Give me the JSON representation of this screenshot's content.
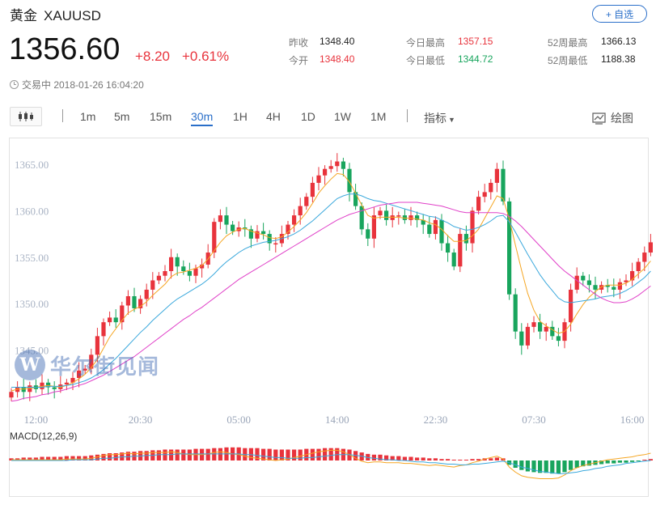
{
  "header": {
    "name": "黄金",
    "symbol": "XAUUSD",
    "watch_label": "+ 自选",
    "price": "1356.60",
    "change_abs": "+8.20",
    "change_pct": "+0.61%",
    "status": "交易中 2018-01-26 16:04:20"
  },
  "stats": {
    "prev_close_label": "昨收",
    "prev_close": "1348.40",
    "open_label": "今开",
    "open": "1348.40",
    "day_high_label": "今日最高",
    "day_high": "1357.15",
    "day_low_label": "今日最低",
    "day_low": "1344.72",
    "w52_high_label": "52周最高",
    "w52_high": "1366.13",
    "w52_low_label": "52周最低",
    "w52_low": "1188.38"
  },
  "toolbar": {
    "periods": [
      "1m",
      "5m",
      "15m",
      "30m",
      "1H",
      "4H",
      "1D",
      "1W",
      "1M"
    ],
    "active_period": "30m",
    "indicators_label": "指标",
    "draw_label": "绘图"
  },
  "watermark": {
    "logo": "W",
    "text": "华尔街见闻"
  },
  "colors": {
    "up": "#e8333c",
    "down": "#18a55d",
    "ma1": "#f5a623",
    "ma2": "#3aa8dc",
    "ma3": "#e040c8",
    "accent": "#2a6fc9"
  },
  "chart_data": {
    "type": "candlestick",
    "ylim": [
      1340,
      1367
    ],
    "yticks": [
      "1345.00",
      "1350.00",
      "1355.00",
      "1360.00",
      "1365.00"
    ],
    "ytick_values": [
      1345,
      1350,
      1355,
      1360,
      1365
    ],
    "xticks": [
      "12:00",
      "20:30",
      "05:00",
      "14:00",
      "22:30",
      "07:30",
      "16:00"
    ],
    "xtick_index": [
      4,
      21,
      37,
      53,
      69,
      85,
      101
    ],
    "close": [
      1340.5,
      1341.0,
      1340.5,
      1341.2,
      1340.8,
      1341.5,
      1341.0,
      1340.8,
      1341.3,
      1341.5,
      1342.0,
      1342.8,
      1343.0,
      1344.5,
      1346.5,
      1348.0,
      1348.5,
      1348.0,
      1349.8,
      1350.8,
      1349.5,
      1350.5,
      1351.5,
      1352.5,
      1353.0,
      1353.5,
      1355.0,
      1354.0,
      1353.5,
      1353.0,
      1353.8,
      1354.2,
      1355.5,
      1358.8,
      1359.5,
      1358.5,
      1357.8,
      1358.2,
      1358.0,
      1357.0,
      1357.8,
      1357.5,
      1356.5,
      1356.5,
      1357.5,
      1358.5,
      1359.5,
      1360.5,
      1361.5,
      1363.0,
      1363.8,
      1364.5,
      1364.8,
      1365.3,
      1364.5,
      1362.0,
      1360.5,
      1358.0,
      1357.0,
      1359.5,
      1360.0,
      1359.0,
      1359.5,
      1359.5,
      1359.0,
      1359.5,
      1359.0,
      1358.5,
      1357.5,
      1359.0,
      1356.5,
      1355.5,
      1354.0,
      1357.5,
      1356.5,
      1360.0,
      1361.5,
      1362.0,
      1363.0,
      1364.5,
      1361.0,
      1351.0,
      1347.0,
      1345.5,
      1347.5,
      1348.0,
      1347.0,
      1347.5,
      1346.5,
      1346.0,
      1348.0,
      1351.5,
      1353.0,
      1352.5,
      1352.0,
      1351.5,
      1352.0,
      1351.8,
      1351.5,
      1352.3,
      1352.5,
      1353.5,
      1354.5,
      1355.5,
      1356.6
    ],
    "ma1": [
      1340.6,
      1340.8,
      1340.8,
      1340.9,
      1341.0,
      1341.1,
      1341.2,
      1341.1,
      1341.0,
      1341.2,
      1341.5,
      1341.9,
      1342.4,
      1343.1,
      1344.0,
      1345.2,
      1346.4,
      1347.3,
      1348.2,
      1349.0,
      1349.4,
      1349.7,
      1350.2,
      1350.9,
      1351.5,
      1352.1,
      1352.9,
      1353.3,
      1353.4,
      1353.6,
      1353.8,
      1354.1,
      1354.8,
      1355.7,
      1356.6,
      1357.3,
      1357.7,
      1358.0,
      1358.1,
      1357.8,
      1357.6,
      1357.4,
      1357.1,
      1357.0,
      1357.2,
      1357.7,
      1358.3,
      1359.0,
      1359.8,
      1360.8,
      1361.9,
      1362.7,
      1363.4,
      1364.0,
      1363.9,
      1363.1,
      1361.9,
      1360.6,
      1359.5,
      1359.2,
      1359.3,
      1359.3,
      1359.3,
      1359.3,
      1359.2,
      1359.2,
      1359.1,
      1359.0,
      1358.7,
      1358.5,
      1358.0,
      1357.3,
      1356.7,
      1356.7,
      1356.8,
      1357.3,
      1358.0,
      1359.2,
      1360.4,
      1361.6,
      1361.3,
      1359.1,
      1356.3,
      1353.6,
      1351.1,
      1349.3,
      1348.1,
      1347.6,
      1347.2,
      1346.8,
      1347.0,
      1347.8,
      1348.9,
      1349.9,
      1350.7,
      1351.3,
      1351.8,
      1352.0,
      1352.0,
      1352.0,
      1352.2,
      1352.6,
      1353.2,
      1353.8,
      1354.6
    ],
    "ma2": [
      1341.0,
      1341.0,
      1341.0,
      1341.0,
      1341.0,
      1341.0,
      1341.1,
      1341.1,
      1341.1,
      1341.2,
      1341.3,
      1341.5,
      1341.7,
      1342.0,
      1342.4,
      1342.9,
      1343.5,
      1344.1,
      1344.8,
      1345.5,
      1346.2,
      1346.9,
      1347.5,
      1348.2,
      1348.8,
      1349.4,
      1350.0,
      1350.5,
      1350.9,
      1351.3,
      1351.7,
      1352.1,
      1352.6,
      1353.2,
      1353.9,
      1354.5,
      1355.0,
      1355.5,
      1355.9,
      1356.2,
      1356.4,
      1356.6,
      1356.7,
      1356.8,
      1357.0,
      1357.2,
      1357.5,
      1357.9,
      1358.4,
      1358.9,
      1359.5,
      1360.1,
      1360.7,
      1361.3,
      1361.6,
      1361.8,
      1361.8,
      1361.6,
      1361.3,
      1361.1,
      1361.0,
      1360.8,
      1360.6,
      1360.4,
      1360.2,
      1360.0,
      1359.8,
      1359.6,
      1359.4,
      1359.3,
      1359.0,
      1358.7,
      1358.3,
      1358.1,
      1357.9,
      1358.0,
      1358.2,
      1358.5,
      1358.9,
      1359.4,
      1359.5,
      1358.8,
      1357.7,
      1356.5,
      1355.3,
      1354.2,
      1353.1,
      1352.2,
      1351.4,
      1350.6,
      1350.2,
      1350.1,
      1350.2,
      1350.3,
      1350.4,
      1350.5,
      1350.7,
      1350.8,
      1350.9,
      1351.1,
      1351.4,
      1351.8,
      1352.3,
      1352.8,
      1353.5
    ],
    "ma3": [
      1339.5,
      1339.6,
      1339.8,
      1339.9,
      1340.0,
      1340.2,
      1340.3,
      1340.5,
      1340.6,
      1340.8,
      1341.0,
      1341.2,
      1341.4,
      1341.7,
      1342.0,
      1342.3,
      1342.7,
      1343.1,
      1343.5,
      1343.9,
      1344.3,
      1344.8,
      1345.3,
      1345.8,
      1346.3,
      1346.8,
      1347.3,
      1347.8,
      1348.3,
      1348.7,
      1349.2,
      1349.6,
      1350.1,
      1350.6,
      1351.1,
      1351.6,
      1352.1,
      1352.6,
      1353.0,
      1353.4,
      1353.8,
      1354.2,
      1354.6,
      1355.0,
      1355.4,
      1355.8,
      1356.2,
      1356.6,
      1357.0,
      1357.4,
      1357.8,
      1358.2,
      1358.6,
      1359.0,
      1359.3,
      1359.6,
      1359.8,
      1360.0,
      1360.2,
      1360.4,
      1360.6,
      1360.7,
      1360.8,
      1360.9,
      1360.9,
      1360.9,
      1360.9,
      1360.8,
      1360.7,
      1360.6,
      1360.5,
      1360.3,
      1360.1,
      1359.9,
      1359.8,
      1359.8,
      1359.8,
      1359.8,
      1359.8,
      1359.8,
      1359.7,
      1359.4,
      1358.9,
      1358.3,
      1357.6,
      1356.9,
      1356.2,
      1355.5,
      1354.8,
      1354.1,
      1353.5,
      1353.0,
      1352.5,
      1352.0,
      1351.5,
      1351.0,
      1350.6,
      1350.3,
      1350.1,
      1350.1,
      1350.2,
      1350.5,
      1350.9,
      1351.4,
      1351.9
    ],
    "macd_label": "MACD(12,26,9)",
    "macd_hist": [
      0.3,
      0.3,
      0.4,
      0.4,
      0.4,
      0.5,
      0.5,
      0.5,
      0.5,
      0.6,
      0.6,
      0.6,
      0.6,
      0.7,
      0.8,
      0.9,
      1.0,
      1.0,
      1.1,
      1.2,
      1.2,
      1.3,
      1.3,
      1.4,
      1.4,
      1.5,
      1.5,
      1.5,
      1.5,
      1.5,
      1.6,
      1.6,
      1.6,
      1.7,
      1.7,
      1.8,
      1.8,
      1.8,
      1.7,
      1.7,
      1.7,
      1.6,
      1.6,
      1.5,
      1.5,
      1.5,
      1.5,
      1.5,
      1.6,
      1.6,
      1.6,
      1.7,
      1.7,
      1.7,
      1.6,
      1.5,
      1.3,
      1.1,
      0.9,
      0.8,
      0.8,
      0.7,
      0.6,
      0.6,
      0.5,
      0.5,
      0.4,
      0.4,
      0.3,
      0.3,
      0.2,
      0.2,
      0.1,
      0.1,
      0.1,
      0.2,
      0.2,
      0.3,
      0.3,
      0.4,
      0.3,
      -0.6,
      -1.0,
      -1.3,
      -1.5,
      -1.6,
      -1.7,
      -1.7,
      -1.8,
      -1.8,
      -1.6,
      -1.3,
      -1.0,
      -0.8,
      -0.7,
      -0.6,
      -0.5,
      -0.4,
      -0.4,
      -0.3,
      -0.3,
      -0.2,
      -0.1,
      0.0,
      0.2
    ],
    "macd_dif": [
      0.1,
      0.1,
      0.1,
      0.1,
      0.1,
      0.1,
      0.1,
      0.1,
      0.1,
      0.2,
      0.2,
      0.2,
      0.2,
      0.3,
      0.5,
      0.7,
      0.8,
      0.8,
      0.9,
      1.0,
      0.9,
      1.0,
      1.0,
      1.1,
      1.1,
      1.1,
      1.2,
      1.1,
      0.9,
      0.8,
      0.8,
      0.8,
      0.9,
      1.1,
      1.2,
      1.1,
      0.9,
      0.8,
      0.6,
      0.4,
      0.3,
      0.2,
      0.1,
      0.0,
      0.1,
      0.2,
      0.4,
      0.6,
      0.8,
      1.0,
      1.2,
      1.3,
      1.4,
      1.4,
      1.2,
      0.8,
      0.3,
      -0.1,
      -0.3,
      -0.2,
      -0.2,
      -0.3,
      -0.3,
      -0.3,
      -0.4,
      -0.4,
      -0.5,
      -0.6,
      -0.7,
      -0.6,
      -0.7,
      -0.8,
      -0.9,
      -0.7,
      -0.6,
      -0.3,
      -0.1,
      0.2,
      0.4,
      0.6,
      0.2,
      -0.9,
      -1.6,
      -2.1,
      -2.3,
      -2.4,
      -2.5,
      -2.5,
      -2.5,
      -2.4,
      -2.0,
      -1.4,
      -1.0,
      -0.7,
      -0.5,
      -0.3,
      -0.1,
      0.1,
      0.2,
      0.3,
      0.4,
      0.5,
      0.7,
      0.8,
      1.0
    ],
    "macd_dea": [
      0.0,
      0.0,
      0.0,
      0.0,
      0.0,
      0.0,
      0.0,
      0.0,
      0.0,
      0.0,
      0.1,
      0.1,
      0.1,
      0.1,
      0.2,
      0.3,
      0.3,
      0.4,
      0.5,
      0.5,
      0.6,
      0.6,
      0.7,
      0.7,
      0.8,
      0.8,
      0.8,
      0.9,
      0.9,
      0.9,
      0.9,
      0.9,
      0.9,
      0.9,
      0.9,
      0.9,
      0.9,
      0.9,
      0.8,
      0.8,
      0.7,
      0.6,
      0.5,
      0.4,
      0.4,
      0.3,
      0.3,
      0.3,
      0.4,
      0.4,
      0.5,
      0.6,
      0.7,
      0.8,
      0.8,
      0.8,
      0.7,
      0.6,
      0.4,
      0.3,
      0.2,
      0.1,
      0.1,
      0.0,
      0.0,
      -0.1,
      -0.2,
      -0.2,
      -0.3,
      -0.3,
      -0.4,
      -0.5,
      -0.5,
      -0.6,
      -0.6,
      -0.5,
      -0.5,
      -0.4,
      -0.3,
      -0.2,
      -0.1,
      -0.3,
      -0.6,
      -0.9,
      -1.1,
      -1.3,
      -1.5,
      -1.6,
      -1.7,
      -1.8,
      -1.8,
      -1.7,
      -1.6,
      -1.4,
      -1.3,
      -1.1,
      -1.0,
      -0.8,
      -0.7,
      -0.6,
      -0.4,
      -0.3,
      -0.2,
      -0.1,
      0.0
    ]
  }
}
